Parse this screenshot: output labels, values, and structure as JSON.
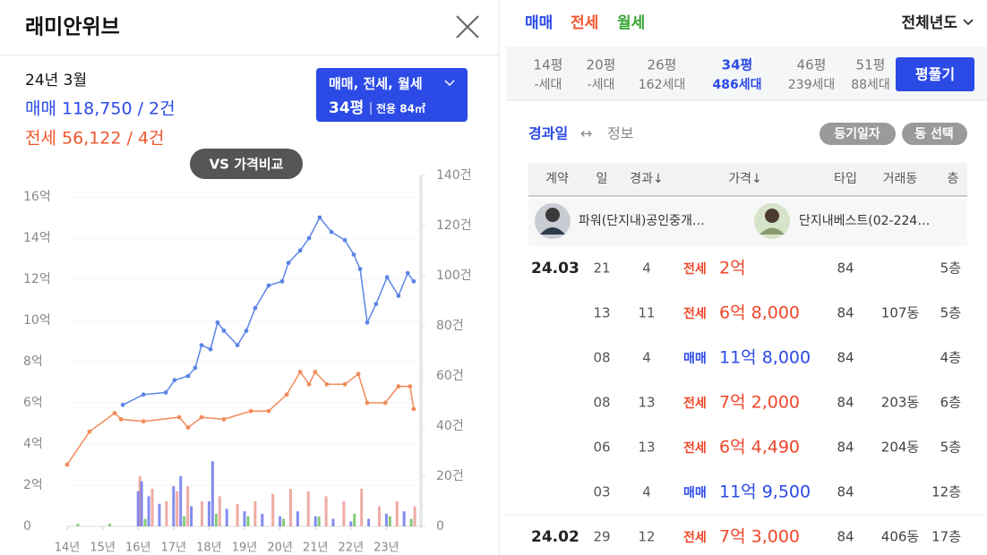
{
  "header": {
    "title": "래미안위브"
  },
  "summary": {
    "date": "24년 3월",
    "sale": "매매 118,750 / 2건",
    "jeonse": "전세 56,122 / 4건"
  },
  "filter_button": {
    "types": "매매, 전세, 월세",
    "size": "34평",
    "area": "전용 84㎡"
  },
  "compare_button": "VS 가격비교",
  "chart_data": {
    "type": "line",
    "xlim": [
      2014,
      2024
    ],
    "xticks": [
      {
        "value": 2014,
        "label": "14년"
      },
      {
        "value": 2015,
        "label": "15년"
      },
      {
        "value": 2016,
        "label": "16년"
      },
      {
        "value": 2017,
        "label": "17년"
      },
      {
        "value": 2018,
        "label": "18년"
      },
      {
        "value": 2019,
        "label": "19년"
      },
      {
        "value": 2020,
        "label": "20년"
      },
      {
        "value": 2021,
        "label": "21년"
      },
      {
        "value": 2022,
        "label": "22년"
      },
      {
        "value": 2023,
        "label": "23년"
      }
    ],
    "ylim": [
      0,
      16
    ],
    "yticks": [
      0,
      {
        "value": 2,
        "label": "2억"
      },
      {
        "value": 4,
        "label": "4억"
      },
      {
        "value": 6,
        "label": "6억"
      },
      {
        "value": 8,
        "label": "8억"
      },
      {
        "value": 10,
        "label": "10억"
      },
      {
        "value": 12,
        "label": "12억"
      },
      {
        "value": 14,
        "label": "14억"
      },
      {
        "value": 16,
        "label": "16억"
      }
    ],
    "y2lim": [
      0,
      140
    ],
    "y2ticks": [
      0,
      {
        "value": 20,
        "label": "20건"
      },
      {
        "value": 40,
        "label": "40건"
      },
      {
        "value": 60,
        "label": "60건"
      },
      {
        "value": 80,
        "label": "80건"
      },
      {
        "value": 100,
        "label": "100건"
      },
      {
        "value": 120,
        "label": "120건"
      },
      {
        "value": 140,
        "label": "140건"
      }
    ],
    "series": [
      {
        "type": "bar",
        "axis": "y2",
        "color": "#e98f86",
        "x": [
          2016.05,
          2016.4,
          2016.8,
          2017.1,
          2017.4,
          2017.8,
          2018.3,
          2018.8,
          2019.3,
          2019.8,
          2020.3,
          2020.8,
          2021.3,
          2021.8,
          2022.3,
          2022.8,
          2023.3,
          2023.8
        ],
        "values": [
          20,
          15,
          10,
          14,
          16,
          10,
          12,
          9,
          10,
          13,
          15,
          14,
          12,
          10,
          15,
          8,
          10,
          8
        ]
      },
      {
        "type": "bar",
        "axis": "y2",
        "color": "#5a66e8",
        "x": [
          2016.0,
          2016.1,
          2016.3,
          2016.6,
          2017.0,
          2017.2,
          2017.5,
          2018.0,
          2018.1,
          2018.5,
          2019.0,
          2019.5,
          2020.0,
          2020.5,
          2021.0,
          2021.5,
          2022.0,
          2022.5,
          2023.0,
          2023.5
        ],
        "values": [
          14,
          18,
          12,
          9,
          16,
          20,
          8,
          10,
          26,
          7,
          6,
          5,
          4,
          6,
          4,
          3,
          2,
          3,
          5,
          6
        ]
      },
      {
        "type": "bar",
        "axis": "y2",
        "color": "#5cb84a",
        "x": [
          2014.3,
          2015.2,
          2016.2,
          2017.3,
          2018.2,
          2019.1,
          2020.1,
          2021.1,
          2022.1,
          2023.1,
          2023.7
        ],
        "values": [
          1,
          1,
          3,
          4,
          5,
          4,
          3,
          4,
          5,
          4,
          3
        ]
      },
      {
        "type": "line",
        "color": "#f28b5b",
        "x": [
          2014.0,
          2014.63,
          2015.34,
          2015.52,
          2016.15,
          2017.16,
          2017.41,
          2017.79,
          2018.42,
          2019.18,
          2019.68,
          2020.19,
          2020.57,
          2020.82,
          2020.99,
          2021.32,
          2021.83,
          2022.21,
          2022.46,
          2022.97,
          2023.34,
          2023.67,
          2023.77
        ],
        "values": [
          3.0,
          4.6,
          5.5,
          5.2,
          5.1,
          5.3,
          4.8,
          5.3,
          5.2,
          5.6,
          5.6,
          6.4,
          7.5,
          6.9,
          7.5,
          6.9,
          6.9,
          7.4,
          6.0,
          6.0,
          6.8,
          6.8,
          5.7
        ]
      },
      {
        "type": "line",
        "color": "#5b86e5",
        "x": [
          2015.57,
          2016.15,
          2016.78,
          2017.03,
          2017.41,
          2017.61,
          2017.79,
          2018.04,
          2018.24,
          2018.42,
          2018.8,
          2019.05,
          2019.3,
          2019.68,
          2020.06,
          2020.24,
          2020.57,
          2020.82,
          2021.12,
          2021.45,
          2021.83,
          2022.08,
          2022.26,
          2022.46,
          2022.71,
          2023.02,
          2023.34,
          2023.6,
          2023.77
        ],
        "values": [
          5.9,
          6.4,
          6.5,
          7.1,
          7.3,
          7.7,
          8.8,
          8.6,
          9.9,
          9.5,
          8.8,
          9.5,
          10.6,
          11.7,
          11.9,
          12.8,
          13.4,
          14.0,
          15.0,
          14.3,
          13.9,
          13.2,
          12.5,
          9.9,
          10.8,
          12.1,
          11.2,
          12.3,
          11.9
        ]
      }
    ]
  },
  "trade_tabs": [
    "매매",
    "전세",
    "월세"
  ],
  "year_filter": "전체년도",
  "sizes": [
    {
      "size": "14평",
      "units": "-세대"
    },
    {
      "size": "20평",
      "units": "-세대"
    },
    {
      "size": "26평",
      "units": "162세대"
    },
    {
      "size": "34평",
      "units": "486세대"
    },
    {
      "size": "46평",
      "units": "239세대"
    },
    {
      "size": "51평",
      "units": "88세대"
    }
  ],
  "unfold_button": "평풀기",
  "view_toggle": {
    "left": "경과일",
    "separator": "↔",
    "right": "정보"
  },
  "chips": [
    "등기일자",
    "동 선택"
  ],
  "table": {
    "columns": [
      "계약",
      "일",
      "경과↓",
      "가격↓",
      "타입",
      "거래동",
      "층"
    ],
    "agents": [
      "파워(단지내)공인중개…",
      "단지내베스트(02-224…"
    ],
    "rows": [
      {
        "month": "24.03",
        "day": "21",
        "elapsed": "4",
        "kind": "전세",
        "price": "2억",
        "area": "84",
        "floor": "5층"
      },
      {
        "day": "13",
        "elapsed": "11",
        "kind": "전세",
        "price": "6억 8,000",
        "area": "84",
        "dong": "107동",
        "floor": "5층"
      },
      {
        "day": "08",
        "elapsed": "4",
        "kind": "매매",
        "price": "11억 8,000",
        "area": "84",
        "floor": "4층"
      },
      {
        "day": "08",
        "elapsed": "13",
        "kind": "전세",
        "price": "7억 2,000",
        "area": "84",
        "dong": "203동",
        "floor": "6층"
      },
      {
        "day": "06",
        "elapsed": "13",
        "kind": "전세",
        "price": "6억 4,490",
        "area": "84",
        "dong": "204동",
        "floor": "5층"
      },
      {
        "day": "03",
        "elapsed": "4",
        "kind": "매매",
        "price": "11억 9,500",
        "area": "84",
        "floor": "12층"
      },
      {
        "month": "24.02",
        "day": "29",
        "elapsed": "12",
        "kind": "전세",
        "price": "7억 3,000",
        "area": "84",
        "dong": "406동",
        "floor": "17층"
      }
    ]
  }
}
